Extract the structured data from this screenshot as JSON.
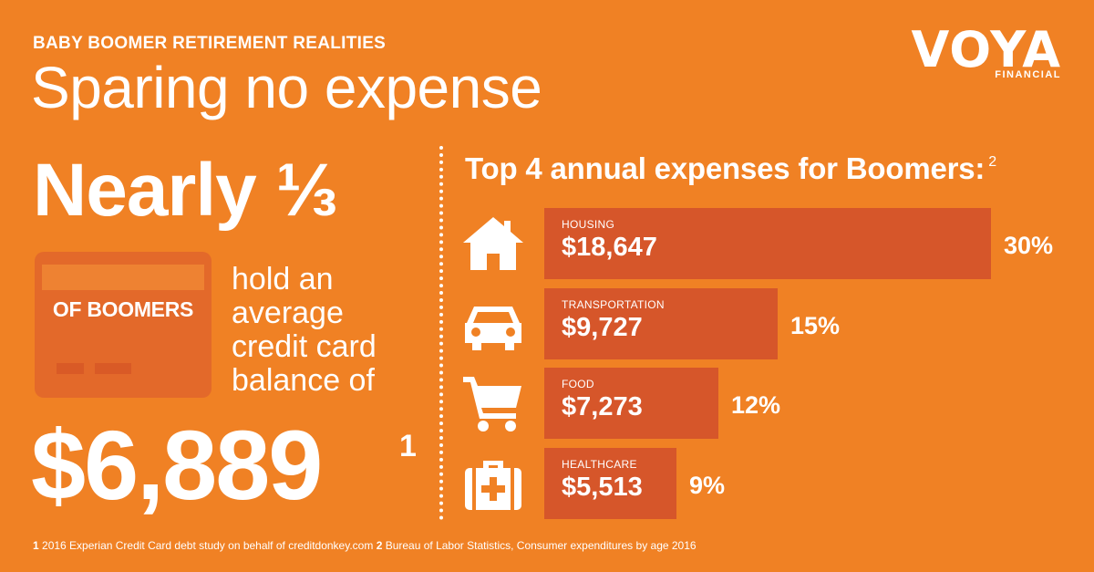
{
  "header": {
    "eyebrow": "BABY BOOMER RETIREMENT REALITIES",
    "headline": "Sparing no expense"
  },
  "logo": {
    "word": "VOYA",
    "sub": "FINANCIAL",
    "mark": "®"
  },
  "left_stat": {
    "big": "Nearly ⅓",
    "card_label": "OF BOOMERS",
    "hold_lines": [
      "hold an",
      "average",
      "credit card",
      "balance of"
    ],
    "amount": "$6,889",
    "amount_footnote": "1"
  },
  "chart_data": {
    "type": "bar",
    "title": "Top 4 annual expenses for Boomers:",
    "title_footnote": "2",
    "categories": [
      "HOUSING",
      "TRANSPORTATION",
      "FOOD",
      "HEALTHCARE"
    ],
    "values": [
      18647,
      9727,
      7273,
      5513
    ],
    "value_labels": [
      "$18,647",
      "$9,727",
      "$7,273",
      "$5,513"
    ],
    "percent_labels": [
      "30%",
      "15%",
      "12%",
      "9%"
    ],
    "icons": [
      "house-icon",
      "car-icon",
      "shopping-cart-icon",
      "first-aid-kit-icon"
    ],
    "bar_color": "#d6562a"
  },
  "footnote": {
    "n1": "1",
    "t1": " 2016 Experian Credit Card debt study on behalf of creditdonkey.com ",
    "n2": "2",
    "t2": " Bureau of Labor Statistics, Consumer expenditures by age 2016"
  },
  "colors": {
    "background": "#f08124",
    "card": "#e3692a",
    "bar": "#d6562a",
    "text": "#ffffff"
  }
}
